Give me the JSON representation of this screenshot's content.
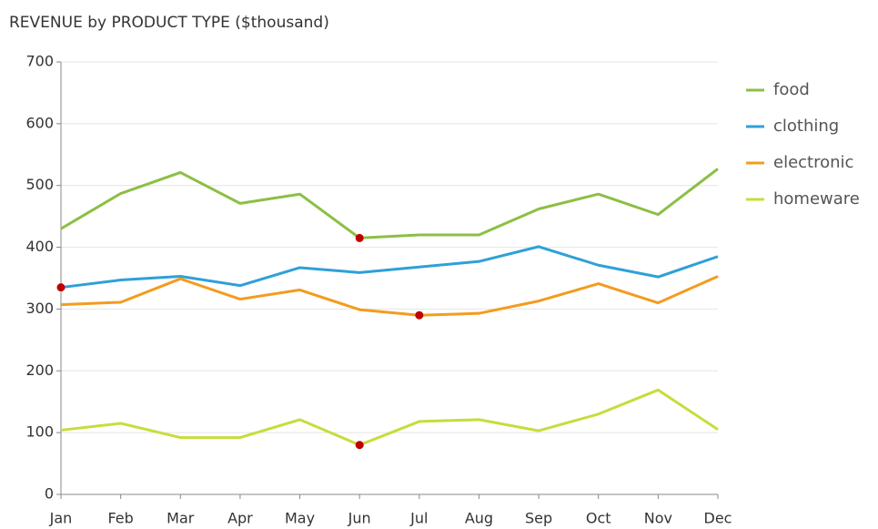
{
  "chart_data": {
    "type": "line",
    "title": "REVENUE by PRODUCT TYPE ($thousand)",
    "categories": [
      "Jan",
      "Feb",
      "Mar",
      "Apr",
      "May",
      "Jun",
      "Jul",
      "Aug",
      "Sep",
      "Oct",
      "Nov",
      "Dec"
    ],
    "series": [
      {
        "name": "food",
        "color": "#8cbf44",
        "values": [
          430,
          487,
          521,
          471,
          486,
          415,
          420,
          420,
          462,
          486,
          453,
          527
        ]
      },
      {
        "name": "clothing",
        "color": "#2fa0d8",
        "values": [
          335,
          347,
          353,
          338,
          367,
          359,
          368,
          377,
          401,
          371,
          352,
          385
        ]
      },
      {
        "name": "electronic",
        "color": "#f39c1f",
        "values": [
          307,
          311,
          349,
          316,
          331,
          299,
          290,
          293,
          313,
          341,
          310,
          353
        ]
      },
      {
        "name": "homeware",
        "color": "#c8dc3c",
        "values": [
          104,
          115,
          92,
          92,
          121,
          80,
          118,
          121,
          103,
          130,
          169,
          105
        ]
      }
    ],
    "ylim": [
      0,
      700
    ],
    "yticks": [
      0,
      100,
      200,
      300,
      400,
      500,
      600,
      700
    ],
    "grid": true,
    "legend": "right",
    "min_marker_color": "#c00000"
  }
}
